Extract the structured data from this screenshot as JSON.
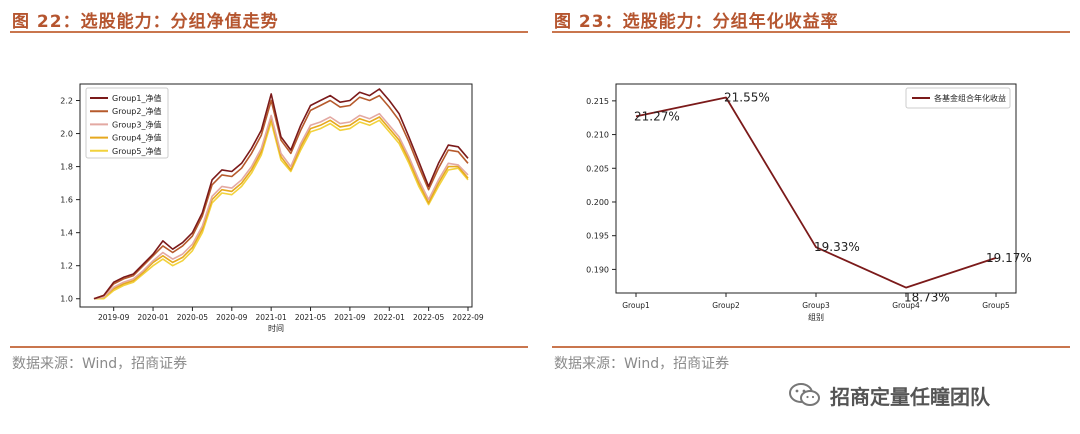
{
  "left": {
    "title": "图 22：选股能力：分组净值走势",
    "source": "数据来源：Wind，招商证券"
  },
  "right": {
    "title": "图 23：选股能力：分组年化收益率",
    "source": "数据来源：Wind，招商证券"
  },
  "watermark": {
    "text": "招商定量任瞳团队",
    "icon": "wechat-icon"
  },
  "colors": {
    "accent": "#b5552f",
    "rule": "#c9764e"
  },
  "chart_data": [
    {
      "type": "line",
      "xlabel": "时间",
      "ylabel": "",
      "ylim": [
        0.95,
        2.3
      ],
      "yticks": [
        "1.0",
        "1.2",
        "1.4",
        "1.6",
        "1.8",
        "2.0",
        "2.2"
      ],
      "xticks": [
        "2019-09",
        "2020-01",
        "2020-05",
        "2020-09",
        "2021-01",
        "2021-05",
        "2021-09",
        "2022-01",
        "2022-05",
        "2022-09"
      ],
      "legend": "top-left",
      "x": [
        "2019-07",
        "2019-08",
        "2019-09",
        "2019-10",
        "2019-11",
        "2019-12",
        "2020-01",
        "2020-02",
        "2020-03",
        "2020-04",
        "2020-05",
        "2020-06",
        "2020-07",
        "2020-08",
        "2020-09",
        "2020-10",
        "2020-11",
        "2020-12",
        "2021-01",
        "2021-02",
        "2021-03",
        "2021-04",
        "2021-05",
        "2021-06",
        "2021-07",
        "2021-08",
        "2021-09",
        "2021-10",
        "2021-11",
        "2021-12",
        "2022-01",
        "2022-02",
        "2022-03",
        "2022-04",
        "2022-05",
        "2022-06",
        "2022-07",
        "2022-08",
        "2022-09"
      ],
      "series": [
        {
          "name": "Group1_净值",
          "color": "#7b1a1a",
          "values": [
            1.0,
            1.02,
            1.1,
            1.13,
            1.15,
            1.21,
            1.27,
            1.35,
            1.3,
            1.34,
            1.4,
            1.52,
            1.72,
            1.78,
            1.77,
            1.82,
            1.91,
            2.02,
            2.24,
            1.98,
            1.9,
            2.05,
            2.17,
            2.2,
            2.23,
            2.19,
            2.2,
            2.25,
            2.23,
            2.27,
            2.2,
            2.12,
            1.98,
            1.83,
            1.68,
            1.82,
            1.93,
            1.92,
            1.85
          ]
        },
        {
          "name": "Group2_净值",
          "color": "#b65a2c",
          "values": [
            1.0,
            1.02,
            1.09,
            1.12,
            1.14,
            1.2,
            1.26,
            1.32,
            1.28,
            1.32,
            1.38,
            1.5,
            1.69,
            1.75,
            1.74,
            1.79,
            1.88,
            1.99,
            2.2,
            1.96,
            1.88,
            2.02,
            2.14,
            2.17,
            2.2,
            2.16,
            2.17,
            2.22,
            2.2,
            2.23,
            2.16,
            2.08,
            1.95,
            1.8,
            1.66,
            1.79,
            1.9,
            1.89,
            1.82
          ]
        },
        {
          "name": "Group3_净值",
          "color": "#e3a9a2",
          "values": [
            1.0,
            1.01,
            1.07,
            1.1,
            1.12,
            1.17,
            1.23,
            1.28,
            1.24,
            1.27,
            1.33,
            1.44,
            1.62,
            1.68,
            1.67,
            1.72,
            1.8,
            1.91,
            2.11,
            1.88,
            1.8,
            1.94,
            2.05,
            2.07,
            2.1,
            2.06,
            2.07,
            2.11,
            2.09,
            2.12,
            2.05,
            1.98,
            1.86,
            1.72,
            1.6,
            1.72,
            1.82,
            1.81,
            1.75
          ]
        },
        {
          "name": "Group4_净值",
          "color": "#e6a91f",
          "values": [
            1.0,
            1.01,
            1.06,
            1.09,
            1.11,
            1.16,
            1.22,
            1.26,
            1.22,
            1.25,
            1.31,
            1.42,
            1.6,
            1.66,
            1.65,
            1.7,
            1.78,
            1.89,
            2.09,
            1.86,
            1.78,
            1.92,
            2.03,
            2.05,
            2.08,
            2.04,
            2.05,
            2.09,
            2.07,
            2.1,
            2.03,
            1.96,
            1.84,
            1.7,
            1.58,
            1.7,
            1.8,
            1.8,
            1.73
          ]
        },
        {
          "name": "Group5_净值",
          "color": "#f2d23c",
          "values": [
            1.0,
            1.0,
            1.05,
            1.08,
            1.1,
            1.15,
            1.2,
            1.24,
            1.2,
            1.23,
            1.29,
            1.4,
            1.58,
            1.64,
            1.63,
            1.68,
            1.76,
            1.87,
            2.07,
            1.84,
            1.77,
            1.9,
            2.01,
            2.03,
            2.06,
            2.02,
            2.03,
            2.07,
            2.05,
            2.08,
            2.01,
            1.94,
            1.82,
            1.68,
            1.57,
            1.68,
            1.78,
            1.79,
            1.72
          ]
        }
      ]
    },
    {
      "type": "line",
      "xlabel": "组别",
      "ylabel": "",
      "ylim": [
        0.1865,
        0.2175
      ],
      "yticks": [
        "0.190",
        "0.195",
        "0.200",
        "0.205",
        "0.210",
        "0.215"
      ],
      "categories": [
        "Group1",
        "Group2",
        "Group3",
        "Group4",
        "Group5"
      ],
      "legend": "top-right",
      "series": [
        {
          "name": "各基金组合年化收益",
          "color": "#7b1a1a",
          "values": [
            0.2127,
            0.2155,
            0.1933,
            0.1873,
            0.1917
          ],
          "labels": [
            "21.27%",
            "21.55%",
            "19.33%",
            "18.73%",
            "19.17%"
          ]
        }
      ]
    }
  ]
}
